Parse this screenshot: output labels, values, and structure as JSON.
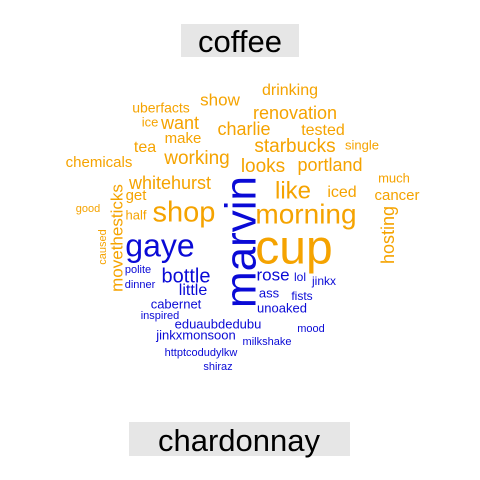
{
  "chart_data": {
    "type": "wordcloud",
    "groups": [
      {
        "name": "coffee",
        "color": "#f5a300",
        "words": [
          "cup",
          "morning",
          "shop",
          "like",
          "starbucks",
          "renovation",
          "portland",
          "whitehurst",
          "hosting",
          "working",
          "looks",
          "charlie",
          "want",
          "show",
          "drinking",
          "tested",
          "iced",
          "chemicals",
          "tea",
          "make",
          "uberfacts",
          "ice",
          "single",
          "cancer",
          "much",
          "get",
          "half",
          "good",
          "caused",
          "movethesticks"
        ]
      },
      {
        "name": "chardonnay",
        "color": "#0a0ad6",
        "words": [
          "marvin",
          "gaye",
          "bottle",
          "rose",
          "little",
          "ass",
          "lol",
          "jinkx",
          "fists",
          "unoaked",
          "polite",
          "dinner",
          "cabernet",
          "inspired",
          "eduaubdedubu",
          "jinkxmonsoon",
          "milkshake",
          "mood",
          "httptcodudylkw",
          "shiraz"
        ]
      }
    ],
    "background_label_color": "#e6e6e6"
  }
}
